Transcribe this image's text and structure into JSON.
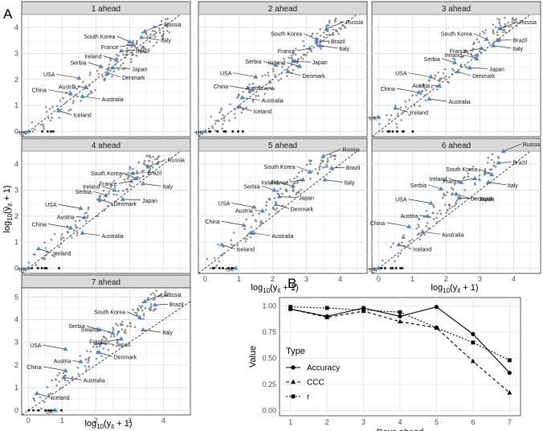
{
  "figure": {
    "panel_a_label": "A",
    "panel_b_label": "B",
    "scatter_xlabel": "log10(yit + 1)",
    "scatter_ylabel": "log10(ŷit + 1)"
  },
  "chart_data": [
    {
      "type": "scatter",
      "title": "1 ahead",
      "xlim": [
        -0.2,
        4.8
      ],
      "ylim": [
        -0.2,
        4.5
      ],
      "xticks": [
        0,
        1,
        2,
        3,
        4
      ],
      "yticks": [
        0,
        1,
        2,
        3,
        4
      ],
      "reference_line": "y = x (dashed)",
      "highlighted": [
        {
          "name": "Russia",
          "x": 3.45,
          "y": 3.85
        },
        {
          "name": "Italy",
          "x": 3.35,
          "y": 3.62
        },
        {
          "name": "South Korea",
          "x": 3.0,
          "y": 3.45
        },
        {
          "name": "France",
          "x": 3.1,
          "y": 3.35
        },
        {
          "name": "Brazil",
          "x": 2.75,
          "y": 3.1
        },
        {
          "name": "Ireland",
          "x": 2.6,
          "y": 2.75
        },
        {
          "name": "Japan",
          "x": 2.5,
          "y": 2.45
        },
        {
          "name": "Serbia",
          "x": 2.15,
          "y": 2.5
        },
        {
          "name": "Denmark",
          "x": 2.35,
          "y": 2.25
        },
        {
          "name": "USA",
          "x": 1.5,
          "y": 2.05
        },
        {
          "name": "Austria",
          "x": 1.7,
          "y": 1.7
        },
        {
          "name": "China",
          "x": 1.25,
          "y": 1.45
        },
        {
          "name": "Australia",
          "x": 1.6,
          "y": 1.35
        },
        {
          "name": "Iceland",
          "x": 0.9,
          "y": 0.8
        },
        {
          "name": "UK",
          "x": 0.0,
          "y": 0.0
        }
      ]
    },
    {
      "type": "scatter",
      "title": "2 ahead",
      "xlim": [
        -0.2,
        4.8
      ],
      "ylim": [
        -0.2,
        4.5
      ],
      "xticks": [
        0,
        1,
        2,
        3,
        4
      ],
      "yticks": [
        0,
        1,
        2,
        3,
        4
      ],
      "reference_line": "y = x (dashed)",
      "highlighted": [
        {
          "name": "Russia",
          "x": 3.6,
          "y": 3.95
        },
        {
          "name": "South Korea",
          "x": 3.3,
          "y": 3.55
        },
        {
          "name": "Brazil",
          "x": 3.3,
          "y": 3.45
        },
        {
          "name": "France",
          "x": 3.1,
          "y": 3.2
        },
        {
          "name": "Italy",
          "x": 3.4,
          "y": 3.3
        },
        {
          "name": "Japan",
          "x": 2.6,
          "y": 2.7
        },
        {
          "name": "Ireland",
          "x": 2.8,
          "y": 2.5
        },
        {
          "name": "Serbia",
          "x": 2.1,
          "y": 2.55
        },
        {
          "name": "Denmark",
          "x": 2.45,
          "y": 2.3
        },
        {
          "name": "USA",
          "x": 1.5,
          "y": 2.1
        },
        {
          "name": "Austria",
          "x": 2.0,
          "y": 1.65
        },
        {
          "name": "China",
          "x": 1.4,
          "y": 1.6
        },
        {
          "name": "Australia",
          "x": 1.1,
          "y": 1.3
        },
        {
          "name": "Iceland",
          "x": 1.0,
          "y": 0.95
        },
        {
          "name": "UK",
          "x": 0.0,
          "y": 0.0
        }
      ]
    },
    {
      "type": "scatter",
      "title": "3 ahead",
      "xlim": [
        -0.2,
        4.8
      ],
      "ylim": [
        -0.2,
        4.5
      ],
      "xticks": [
        0,
        1,
        2,
        3,
        4
      ],
      "yticks": [
        0,
        1,
        2,
        3,
        4
      ],
      "reference_line": "y = x (dashed)",
      "highlighted": [
        {
          "name": "Russia",
          "x": 3.6,
          "y": 3.95
        },
        {
          "name": "Brazil",
          "x": 3.55,
          "y": 3.5
        },
        {
          "name": "South Korea",
          "x": 3.2,
          "y": 3.55
        },
        {
          "name": "Italy",
          "x": 3.4,
          "y": 3.3
        },
        {
          "name": "France",
          "x": 3.05,
          "y": 3.2
        },
        {
          "name": "Ireland",
          "x": 2.9,
          "y": 2.8
        },
        {
          "name": "Serbia",
          "x": 2.25,
          "y": 2.65
        },
        {
          "name": "Japan",
          "x": 2.7,
          "y": 2.45
        },
        {
          "name": "Denmark",
          "x": 2.35,
          "y": 2.3
        },
        {
          "name": "USA",
          "x": 1.55,
          "y": 2.1
        },
        {
          "name": "Austria",
          "x": 1.8,
          "y": 1.75
        },
        {
          "name": "China",
          "x": 1.2,
          "y": 1.5
        },
        {
          "name": "Australia",
          "x": 1.5,
          "y": 1.25
        },
        {
          "name": "Iceland",
          "x": 0.5,
          "y": 0.9
        },
        {
          "name": "UK",
          "x": 0.0,
          "y": 0.55
        }
      ]
    },
    {
      "type": "scatter",
      "title": "4 ahead",
      "xlim": [
        -0.2,
        4.8
      ],
      "ylim": [
        -0.2,
        4.5
      ],
      "xticks": [
        0,
        1,
        2,
        3,
        4
      ],
      "yticks": [
        0,
        1,
        2,
        3,
        4
      ],
      "reference_line": "y = x (dashed)",
      "highlighted": [
        {
          "name": "Russia",
          "x": 3.55,
          "y": 3.9
        },
        {
          "name": "Brazil",
          "x": 3.1,
          "y": 3.65
        },
        {
          "name": "South Korea",
          "x": 3.2,
          "y": 3.45
        },
        {
          "name": "France",
          "x": 3.05,
          "y": 3.35
        },
        {
          "name": "Italy",
          "x": 3.4,
          "y": 3.25
        },
        {
          "name": "Ireland",
          "x": 2.55,
          "y": 3.0
        },
        {
          "name": "Serbia",
          "x": 2.3,
          "y": 2.8
        },
        {
          "name": "Denmark",
          "x": 2.1,
          "y": 2.65
        },
        {
          "name": "Japan",
          "x": 2.8,
          "y": 2.65
        },
        {
          "name": "USA",
          "x": 1.55,
          "y": 2.3
        },
        {
          "name": "Austria",
          "x": 1.65,
          "y": 1.95
        },
        {
          "name": "China",
          "x": 1.25,
          "y": 1.55
        },
        {
          "name": "Australia",
          "x": 1.6,
          "y": 1.35
        },
        {
          "name": "Iceland",
          "x": 0.3,
          "y": 0.75
        },
        {
          "name": "UK",
          "x": 0.0,
          "y": 0.0
        }
      ]
    },
    {
      "type": "scatter",
      "title": "5 ahead",
      "xlim": [
        -0.2,
        4.8
      ],
      "ylim": [
        -0.2,
        4.5
      ],
      "xticks": [
        0,
        1,
        2,
        3,
        4
      ],
      "yticks": [
        0,
        1,
        2,
        3,
        4
      ],
      "reference_line": "y = x (dashed)",
      "highlighted": [
        {
          "name": "Russia",
          "x": 3.5,
          "y": 4.3
        },
        {
          "name": "Brazil",
          "x": 3.75,
          "y": 3.85
        },
        {
          "name": "South Korea",
          "x": 3.1,
          "y": 3.7
        },
        {
          "name": "Italy",
          "x": 3.55,
          "y": 3.4
        },
        {
          "name": "France",
          "x": 2.9,
          "y": 3.4
        },
        {
          "name": "Ireland",
          "x": 2.6,
          "y": 3.15
        },
        {
          "name": "Serbia",
          "x": 2.05,
          "y": 3.0
        },
        {
          "name": "Japan",
          "x": 2.2,
          "y": 2.75
        },
        {
          "name": "Denmark",
          "x": 2.1,
          "y": 2.45
        },
        {
          "name": "USA",
          "x": 1.45,
          "y": 2.35
        },
        {
          "name": "Austria",
          "x": 1.7,
          "y": 2.2
        },
        {
          "name": "China",
          "x": 1.15,
          "y": 1.65
        },
        {
          "name": "Australia",
          "x": 1.4,
          "y": 1.35
        },
        {
          "name": "Iceland",
          "x": 0.5,
          "y": 0.9
        },
        {
          "name": "UK",
          "x": 0.9,
          "y": 0.0
        }
      ]
    },
    {
      "type": "scatter",
      "title": "6 ahead",
      "xlim": [
        -0.2,
        4.8
      ],
      "ylim": [
        -0.2,
        4.5
      ],
      "xticks": [
        0,
        1,
        2,
        3,
        4
      ],
      "yticks": [
        0,
        1,
        2,
        3,
        4
      ],
      "reference_line": "y = x (dashed)",
      "highlighted": [
        {
          "name": "Russia",
          "x": 3.7,
          "y": 4.5
        },
        {
          "name": "Brazil",
          "x": 3.55,
          "y": 4.05
        },
        {
          "name": "South Korea",
          "x": 3.35,
          "y": 3.6
        },
        {
          "name": "France",
          "x": 2.85,
          "y": 3.45
        },
        {
          "name": "Italy",
          "x": 3.25,
          "y": 3.3
        },
        {
          "name": "Ireland",
          "x": 2.45,
          "y": 3.3
        },
        {
          "name": "Serbia",
          "x": 1.85,
          "y": 3.05
        },
        {
          "name": "Denmark",
          "x": 2.3,
          "y": 2.85
        },
        {
          "name": "Japan",
          "x": 2.4,
          "y": 2.7
        },
        {
          "name": "USA",
          "x": 1.55,
          "y": 2.5
        },
        {
          "name": "Austria",
          "x": 1.45,
          "y": 2.0
        },
        {
          "name": "China",
          "x": 0.9,
          "y": 1.6
        },
        {
          "name": "Australia",
          "x": 1.3,
          "y": 1.4
        },
        {
          "name": "Iceland",
          "x": 0.6,
          "y": 0.9
        },
        {
          "name": "UK",
          "x": 0.0,
          "y": 0.0
        }
      ]
    },
    {
      "type": "scatter",
      "title": "7 ahead",
      "xlim": [
        -0.2,
        4.8
      ],
      "ylim": [
        -0.2,
        5.4
      ],
      "xticks": [
        0,
        1,
        2,
        3,
        4
      ],
      "yticks": [
        0,
        1,
        2,
        3,
        4,
        5
      ],
      "reference_line": "y = x (dashed)",
      "highlighted": [
        {
          "name": "Russia",
          "x": 3.45,
          "y": 4.8
        },
        {
          "name": "Brazil",
          "x": 3.75,
          "y": 4.65
        },
        {
          "name": "South Korea",
          "x": 3.3,
          "y": 4.1
        },
        {
          "name": "Italy",
          "x": 3.4,
          "y": 3.55
        },
        {
          "name": "Serbia",
          "x": 2.1,
          "y": 3.55
        },
        {
          "name": "Ireland",
          "x": 2.5,
          "y": 3.4
        },
        {
          "name": "France",
          "x": 2.75,
          "y": 3.15
        },
        {
          "name": "Japan",
          "x": 2.0,
          "y": 2.95
        },
        {
          "name": "Denmark",
          "x": 2.1,
          "y": 2.55
        },
        {
          "name": "USA",
          "x": 1.1,
          "y": 2.7
        },
        {
          "name": "Austria",
          "x": 1.55,
          "y": 2.15
        },
        {
          "name": "China",
          "x": 1.1,
          "y": 1.75
        },
        {
          "name": "Australia",
          "x": 1.05,
          "y": 1.45
        },
        {
          "name": "Iceland",
          "x": 0.25,
          "y": 0.75
        },
        {
          "name": "UK",
          "x": 0.8,
          "y": 0.0
        }
      ]
    },
    {
      "type": "line",
      "xlabel": "Days ahead",
      "ylabel": "Value",
      "x": [
        1,
        2,
        3,
        4,
        5,
        6,
        7
      ],
      "xlim": [
        0.7,
        7.3
      ],
      "ylim": [
        -0.05,
        1.08
      ],
      "xticks": [
        1,
        2,
        3,
        4,
        5,
        6,
        7
      ],
      "yticks": [
        0.0,
        0.25,
        0.5,
        0.75,
        1.0
      ],
      "legend_title": "Type",
      "legend_position": "left-bottom",
      "series": [
        {
          "name": "Accuracy",
          "line": "solid",
          "marker": "circle",
          "values": [
            0.97,
            0.9,
            0.98,
            0.9,
            0.99,
            0.73,
            0.36
          ]
        },
        {
          "name": "CCC",
          "line": "dashed",
          "marker": "triangle",
          "values": [
            0.97,
            0.89,
            0.95,
            0.85,
            0.79,
            0.47,
            0.17
          ]
        },
        {
          "name": "r",
          "line": "dotted-dash",
          "marker": "square",
          "values": [
            0.99,
            0.98,
            0.96,
            0.94,
            0.79,
            0.65,
            0.48
          ]
        }
      ]
    }
  ]
}
